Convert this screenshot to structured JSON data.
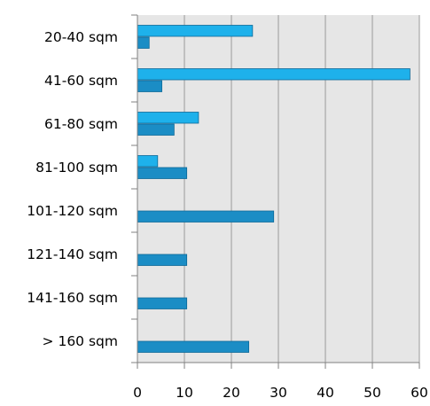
{
  "chart_data": {
    "type": "bar",
    "orientation": "horizontal",
    "categories": [
      "20-40 sqm",
      "41-60 sqm",
      "61-80 sqm",
      "81-100 sqm",
      "101-120 sqm",
      "121-140 sqm",
      "141-160 sqm",
      "> 160 sqm"
    ],
    "series": [
      {
        "values": [
          24.5,
          58,
          13,
          4.3,
          0,
          0,
          0,
          0
        ],
        "color": "#1eb1eb"
      },
      {
        "values": [
          2.5,
          5.2,
          7.8,
          10.5,
          29,
          10.5,
          10.5,
          23.7
        ],
        "color": "#1b8dc5"
      }
    ],
    "x_ticks": [
      "0",
      "10",
      "20",
      "30",
      "40",
      "50",
      "60"
    ],
    "xlim": [
      0,
      60
    ],
    "title": "",
    "xlabel": "",
    "ylabel": "",
    "grid": "vertical",
    "legend": "none",
    "plot_background": "#e6e6e6",
    "gridline_color": "#999999",
    "axis_color": "#808080"
  }
}
